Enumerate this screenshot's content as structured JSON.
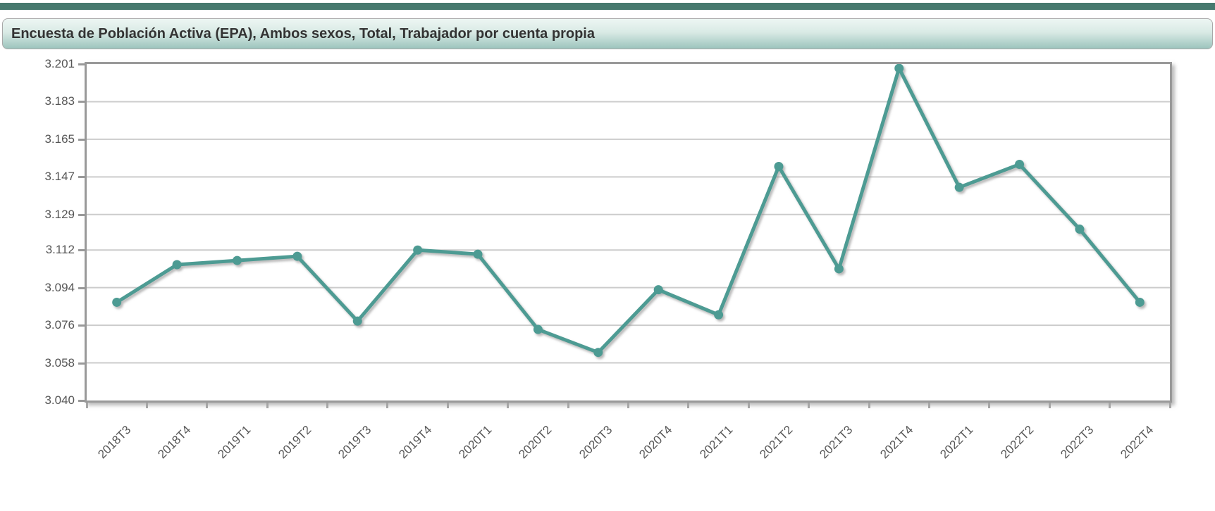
{
  "accent": {
    "bar_color": "#47796E",
    "line_color": "#4D9B93"
  },
  "header": {
    "title": "Encuesta de Población Activa (EPA), Ambos sexos, Total, Trabajador por cuenta propia"
  },
  "chart_data": {
    "type": "line",
    "title": "Encuesta de Población Activa (EPA), Ambos sexos, Total, Trabajador por cuenta propia",
    "categories": [
      "2018T3",
      "2018T4",
      "2019T1",
      "2019T2",
      "2019T3",
      "2019T4",
      "2020T1",
      "2020T2",
      "2020T3",
      "2020T4",
      "2021T1",
      "2021T2",
      "2021T3",
      "2021T4",
      "2022T1",
      "2022T2",
      "2022T3",
      "2022T4"
    ],
    "series": [
      {
        "name": "Trabajador por cuenta propia",
        "values": [
          3087,
          3105,
          3107,
          3109,
          3078,
          3112,
          3110,
          3074,
          3063,
          3093,
          3081,
          3152,
          3103,
          3199,
          3142,
          3153,
          3122,
          3087
        ]
      }
    ],
    "y_ticks": [
      3040,
      3058,
      3076,
      3094,
      3112,
      3129,
      3147,
      3165,
      3183,
      3201
    ],
    "y_tick_labels": [
      "3.040",
      "3.058",
      "3.076",
      "3.094",
      "3.112",
      "3.129",
      "3.147",
      "3.165",
      "3.183",
      "3.201"
    ],
    "ylim": [
      3040,
      3201
    ],
    "xlabel": "",
    "ylabel": "",
    "grid": true,
    "legend_position": "none",
    "line_color": "#4D9B93",
    "grid_color": "#cccccc",
    "axis_color": "#999999",
    "tick_label_color": "#565656"
  }
}
